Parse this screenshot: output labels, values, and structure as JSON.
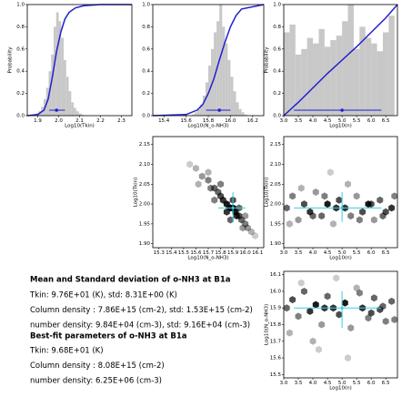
{
  "chart_data": [
    {
      "type": "histogram",
      "xlabel": "Log10(Tkin)",
      "ylabel": "Probability",
      "color": "#c8c8c8",
      "line_color": "#2020d0",
      "xlim": [
        1.85,
        2.35
      ],
      "xticks": [
        1.9,
        {
          "value": 2,
          "label": "2.0"
        },
        2.1,
        2.2,
        2.3
      ],
      "ylim": [
        0,
        1
      ],
      "yticks": [
        {
          "value": 0,
          "label": "0.0"
        },
        0.2,
        0.4,
        0.6,
        0.8,
        {
          "value": 1,
          "label": "1.0"
        }
      ],
      "bins": [
        1.88,
        1.892,
        1.904,
        1.916,
        1.928,
        1.94,
        1.952,
        1.964,
        1.976,
        1.988,
        2.0,
        2.012,
        2.024,
        2.036,
        2.048,
        2.06,
        2.072,
        2.084,
        2.096,
        2.108,
        2.12
      ],
      "counts": [
        0.01,
        0.02,
        0.04,
        0.08,
        0.15,
        0.25,
        0.4,
        0.55,
        0.8,
        0.93,
        0.85,
        0.7,
        0.5,
        0.35,
        0.22,
        0.12,
        0.07,
        0.04,
        0.02,
        0.01
      ],
      "cdf_x": [
        1.85,
        1.9,
        1.93,
        1.95,
        1.97,
        1.99,
        2.01,
        2.03,
        2.05,
        2.08,
        2.12,
        2.2,
        2.35
      ],
      "cdf_y": [
        0,
        0.01,
        0.05,
        0.15,
        0.35,
        0.58,
        0.75,
        0.87,
        0.93,
        0.97,
        0.99,
        1,
        1
      ],
      "point": 1.99,
      "interval": [
        1.955,
        2.03
      ]
    },
    {
      "type": "histogram",
      "xlabel": "Log10(N_o-NH3)",
      "color": "#c8c8c8",
      "line_color": "#2020d0",
      "xlim": [
        15.3,
        16.3
      ],
      "xticks": [
        15.4,
        15.6,
        15.8,
        {
          "value": 16,
          "label": "16.0"
        },
        16.2
      ],
      "ylim": [
        0,
        1
      ],
      "yticks": [
        {
          "value": 0,
          "label": "0.0"
        },
        0.2,
        0.4,
        0.6,
        0.8,
        {
          "value": 1,
          "label": "1.0"
        }
      ],
      "bins": [
        15.65,
        15.675,
        15.7,
        15.725,
        15.75,
        15.775,
        15.8,
        15.825,
        15.85,
        15.875,
        15.9,
        15.925,
        15.95,
        15.975,
        16.0,
        16.025,
        16.05,
        16.075,
        16.1,
        16.125,
        16.15
      ],
      "counts": [
        0.01,
        0.03,
        0.06,
        0.1,
        0.18,
        0.3,
        0.45,
        0.6,
        0.75,
        0.85,
        1,
        0.8,
        0.65,
        0.5,
        0.35,
        0.22,
        0.12,
        0.06,
        0.03,
        0.01
      ],
      "cdf_x": [
        15.3,
        15.6,
        15.7,
        15.75,
        15.8,
        15.85,
        15.9,
        15.95,
        16.0,
        16.05,
        16.1,
        16.3
      ],
      "cdf_y": [
        0,
        0.01,
        0.05,
        0.1,
        0.2,
        0.33,
        0.5,
        0.66,
        0.8,
        0.9,
        0.96,
        1
      ],
      "point": 15.9,
      "interval": [
        15.78,
        16.0
      ]
    },
    {
      "type": "histogram",
      "xlabel": "Log10(n)",
      "ylabel": "Probability",
      "color": "#c8c8c8",
      "line_color": "#2020d0",
      "xlim": [
        3.0,
        6.9
      ],
      "xticks": [
        {
          "value": 3,
          "label": "3.0"
        },
        3.5,
        {
          "value": 4,
          "label": "4.0"
        },
        4.5,
        {
          "value": 5,
          "label": "5.0"
        },
        5.5,
        {
          "value": 6,
          "label": "6.0"
        },
        6.5
      ],
      "ylim": [
        0,
        1
      ],
      "yticks": [
        {
          "value": 0,
          "label": "0.0"
        },
        0.2,
        0.4,
        0.6,
        0.8,
        {
          "value": 1,
          "label": "1.0"
        }
      ],
      "bins": [
        3.0,
        3.2,
        3.4,
        3.6,
        3.8,
        4.0,
        4.2,
        4.4,
        4.6,
        4.8,
        5.0,
        5.2,
        5.4,
        5.6,
        5.8,
        6.0,
        6.2,
        6.4,
        6.6,
        6.8
      ],
      "counts": [
        0.75,
        0.82,
        0.55,
        0.6,
        0.7,
        0.65,
        0.78,
        0.62,
        0.68,
        0.72,
        0.85,
        1,
        0.6,
        0.8,
        0.7,
        0.65,
        0.58,
        0.75,
        0.9
      ],
      "cdf_x": [
        3.0,
        3.5,
        4.0,
        4.5,
        5.0,
        5.5,
        6.0,
        6.5,
        6.9
      ],
      "cdf_y": [
        0,
        0.12,
        0.25,
        0.38,
        0.5,
        0.62,
        0.75,
        0.88,
        1
      ],
      "point": 5.0,
      "interval": [
        3.35,
        6.35
      ]
    },
    {
      "type": "hexbin",
      "xlabel": "Log10(N_o-NH3)",
      "ylabel": "Log10(Tkin)",
      "color": "#000000",
      "cross_color": "#30d0e0",
      "xlim": [
        15.25,
        16.15
      ],
      "xticks": [
        15.3,
        15.4,
        15.5,
        15.6,
        15.7,
        15.8,
        15.9,
        {
          "value": 16,
          "label": "16.0"
        },
        16.1
      ],
      "ylim": [
        1.89,
        2.17
      ],
      "yticks": [
        {
          "value": 1.9,
          "label": "1.90"
        },
        1.95,
        {
          "value": 2,
          "label": "2.00"
        },
        2.05,
        {
          "value": 2.1,
          "label": "2.10"
        },
        2.15
      ],
      "x": [
        15.55,
        15.6,
        15.65,
        15.7,
        15.72,
        15.75,
        15.78,
        15.8,
        15.82,
        15.85,
        15.85,
        15.88,
        15.9,
        15.9,
        15.92,
        15.93,
        15.95,
        15.97,
        16.0,
        16.02,
        16.05,
        16.08,
        15.7,
        15.8,
        15.95,
        16.0,
        15.75,
        15.88,
        15.98,
        15.62
      ],
      "y": [
        2.1,
        2.09,
        2.07,
        2.06,
        2.04,
        2.04,
        2.03,
        2.02,
        2.01,
        2.0,
        1.98,
        1.99,
        1.99,
        2.01,
        1.98,
        1.97,
        1.97,
        1.96,
        1.95,
        1.94,
        1.93,
        1.92,
        2.08,
        2.05,
        1.99,
        1.97,
        2.01,
        1.96,
        1.94,
        2.05
      ],
      "density": [
        0.2,
        0.3,
        0.4,
        0.5,
        0.5,
        0.6,
        0.6,
        0.7,
        0.8,
        0.9,
        0.8,
        1,
        1,
        0.7,
        0.9,
        0.8,
        0.7,
        0.6,
        0.5,
        0.4,
        0.3,
        0.2,
        0.3,
        0.5,
        0.6,
        0.4,
        0.5,
        0.6,
        0.4,
        0.3
      ],
      "point": [
        15.9,
        1.99
      ],
      "xinterval": [
        15.78,
        16.0
      ],
      "yinterval": [
        1.955,
        2.03
      ]
    },
    {
      "type": "hexbin",
      "xlabel": "Log10(n)",
      "ylabel": "Log10(Tkin)",
      "color": "#000000",
      "cross_color": "#30d0e0",
      "xlim": [
        3.0,
        6.9
      ],
      "xticks": [
        {
          "value": 3,
          "label": "3.0"
        },
        3.5,
        {
          "value": 4,
          "label": "4.0"
        },
        4.5,
        {
          "value": 5,
          "label": "5.0"
        },
        5.5,
        {
          "value": 6,
          "label": "6.0"
        },
        6.5
      ],
      "ylim": [
        1.89,
        2.17
      ],
      "yticks": [
        {
          "value": 1.9,
          "label": "1.90"
        },
        1.95,
        {
          "value": 2,
          "label": "2.00"
        },
        2.05,
        {
          "value": 2.1,
          "label": "2.10"
        },
        2.15
      ],
      "x": [
        3.1,
        3.3,
        3.5,
        3.7,
        3.9,
        4.1,
        4.3,
        4.5,
        4.7,
        4.9,
        5.1,
        5.3,
        5.5,
        5.7,
        5.9,
        6.1,
        6.3,
        6.5,
        6.7,
        3.2,
        3.6,
        4.0,
        4.4,
        4.8,
        5.2,
        5.6,
        6.0,
        6.4,
        6.8,
        4.6
      ],
      "y": [
        1.99,
        2.02,
        1.96,
        2.0,
        1.98,
        2.03,
        1.97,
        2.0,
        1.95,
        2.01,
        1.99,
        1.97,
        2.02,
        1.98,
        2.0,
        1.96,
        2.01,
        1.98,
        1.99,
        1.95,
        2.04,
        1.97,
        2.02,
        1.99,
        2.05,
        1.96,
        2.0,
        1.97,
        2.02,
        2.08
      ],
      "density": [
        0.6,
        0.5,
        0.4,
        0.7,
        0.8,
        0.4,
        0.6,
        0.9,
        0.3,
        0.7,
        0.8,
        0.5,
        0.4,
        0.7,
        0.9,
        0.4,
        0.6,
        0.7,
        0.8,
        0.3,
        0.3,
        0.6,
        0.5,
        0.8,
        0.3,
        0.5,
        0.7,
        0.6,
        0.5,
        0.2
      ],
      "point": [
        5.0,
        1.99
      ],
      "xinterval": [
        3.35,
        6.35
      ],
      "yinterval": [
        1.955,
        2.03
      ]
    },
    {
      "type": "hexbin",
      "xlabel": "Log10(n)",
      "ylabel": "Log10(N_o-NH3)",
      "color": "#000000",
      "cross_color": "#30d0e0",
      "xlim": [
        3.0,
        6.9
      ],
      "xticks": [
        {
          "value": 3,
          "label": "3.0"
        },
        3.5,
        {
          "value": 4,
          "label": "4.0"
        },
        4.5,
        {
          "value": 5,
          "label": "5.0"
        },
        5.5,
        {
          "value": 6,
          "label": "6.0"
        },
        6.5
      ],
      "ylim": [
        15.48,
        16.12
      ],
      "yticks": [
        15.5,
        15.6,
        15.7,
        15.8,
        15.9,
        {
          "value": 16,
          "label": "16.0"
        },
        16.1
      ],
      "x": [
        3.1,
        3.3,
        3.5,
        3.7,
        3.9,
        4.1,
        4.3,
        4.5,
        4.7,
        4.9,
        5.1,
        5.3,
        5.5,
        5.7,
        5.9,
        6.1,
        6.3,
        6.5,
        6.7,
        3.2,
        3.6,
        4.0,
        4.4,
        4.8,
        5.2,
        5.6,
        6.0,
        6.4,
        6.8,
        4.2
      ],
      "y": [
        15.9,
        15.95,
        15.85,
        16.0,
        15.88,
        15.92,
        15.8,
        15.97,
        15.9,
        15.86,
        15.93,
        15.78,
        16.02,
        15.9,
        15.84,
        15.96,
        15.89,
        15.82,
        15.94,
        15.75,
        16.05,
        15.7,
        15.9,
        16.08,
        15.6,
        15.99,
        15.87,
        15.91,
        15.83,
        15.65
      ],
      "density": [
        0.6,
        0.7,
        0.5,
        0.6,
        0.8,
        0.9,
        0.4,
        0.6,
        0.8,
        0.7,
        0.9,
        0.4,
        0.3,
        0.8,
        0.5,
        0.6,
        0.7,
        0.5,
        0.6,
        0.3,
        0.2,
        0.3,
        0.8,
        0.2,
        0.2,
        0.5,
        0.7,
        0.6,
        0.5,
        0.2
      ],
      "point": [
        5.0,
        15.9
      ],
      "xinterval": [
        3.35,
        6.35
      ],
      "yinterval": [
        15.78,
        16.0
      ]
    }
  ],
  "text_block": {
    "title1": "Mean and Standard deviation of o-NH3 at B1a",
    "lines1": [
      "Tkin: 9.76E+01 (K), std: 8.31E+00 (K)",
      "Column density : 7.86E+15 (cm-2), std: 1.53E+15 (cm-2)",
      "number density: 9.84E+04 (cm-3), std: 9.16E+04 (cm-3)"
    ],
    "title2": "Best-fit parameters of o-NH3 at B1a",
    "lines2": [
      "Tkin: 9.68E+01 (K)",
      "Column density : 8.08E+15 (cm-2)",
      "number density: 6.25E+06 (cm-3)"
    ]
  }
}
